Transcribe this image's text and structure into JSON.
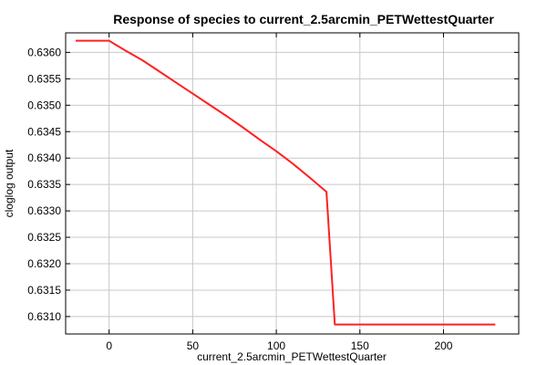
{
  "chart_data": {
    "type": "line",
    "title": "Response of species to current_2.5arcmin_PETWettestQuarter",
    "xlabel": "current_2.5arcmin_PETWettestQuarter",
    "ylabel": "cloglog output",
    "xlim": [
      -26,
      245
    ],
    "ylim": [
      0.63067,
      0.63637
    ],
    "xticks": [
      0,
      50,
      100,
      150,
      200
    ],
    "yticks": [
      0.631,
      0.6315,
      0.632,
      0.6325,
      0.633,
      0.6335,
      0.634,
      0.6345,
      0.635,
      0.6355,
      0.636
    ],
    "grid": true,
    "line_color": "#ff2020",
    "series": [
      {
        "x": [
          -20,
          0,
          10,
          20,
          30,
          40,
          50,
          60,
          70,
          80,
          90,
          100,
          110,
          120,
          130,
          135,
          150,
          200,
          231
        ],
        "y": [
          0.63622,
          0.63622,
          0.63603,
          0.63585,
          0.63564,
          0.63543,
          0.63522,
          0.63501,
          0.6348,
          0.63458,
          0.63435,
          0.63413,
          0.63389,
          0.63363,
          0.63336,
          0.63085,
          0.63085,
          0.63085,
          0.63085
        ]
      }
    ]
  }
}
